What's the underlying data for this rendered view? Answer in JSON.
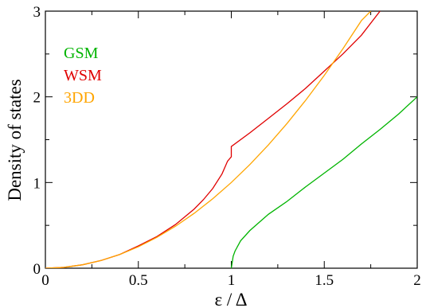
{
  "chart_data": {
    "type": "line",
    "title": "",
    "xlabel": "ε / Δ",
    "ylabel": "Density of states",
    "xlim": [
      0,
      2
    ],
    "ylim": [
      0,
      3
    ],
    "xticks": [
      "0",
      "0.5",
      "1",
      "1.5",
      "2"
    ],
    "yticks": [
      "0",
      "1",
      "2",
      "3"
    ],
    "grid": false,
    "legend_placement": "top-left",
    "series": [
      {
        "name": "GSM",
        "color": "#00b400",
        "x": [
          1.0,
          1.01,
          1.02,
          1.05,
          1.1,
          1.2,
          1.3,
          1.4,
          1.5,
          1.6,
          1.7,
          1.8,
          1.9,
          2.0
        ],
        "y": [
          0.0,
          0.14,
          0.2,
          0.32,
          0.44,
          0.63,
          0.78,
          0.95,
          1.11,
          1.27,
          1.45,
          1.62,
          1.8,
          2.0
        ]
      },
      {
        "name": "WSM",
        "color": "#e00000",
        "x": [
          0.0,
          0.1,
          0.2,
          0.3,
          0.4,
          0.5,
          0.6,
          0.7,
          0.8,
          0.85,
          0.9,
          0.95,
          0.98,
          1.0,
          1.0,
          1.1,
          1.2,
          1.3,
          1.4,
          1.5,
          1.6,
          1.7,
          1.8
        ],
        "y": [
          0.0,
          0.01,
          0.04,
          0.09,
          0.16,
          0.26,
          0.37,
          0.51,
          0.69,
          0.8,
          0.93,
          1.1,
          1.25,
          1.3,
          1.42,
          1.58,
          1.75,
          1.92,
          2.1,
          2.3,
          2.5,
          2.72,
          3.0
        ]
      },
      {
        "name": "3DD",
        "color": "#ffa500",
        "x": [
          0.0,
          0.1,
          0.2,
          0.3,
          0.4,
          0.5,
          0.6,
          0.7,
          0.8,
          0.9,
          1.0,
          1.1,
          1.2,
          1.3,
          1.4,
          1.5,
          1.6,
          1.7,
          1.75
        ],
        "y": [
          0.0,
          0.01,
          0.04,
          0.09,
          0.16,
          0.25,
          0.36,
          0.49,
          0.64,
          0.81,
          1.0,
          1.21,
          1.44,
          1.69,
          1.96,
          2.25,
          2.56,
          2.89,
          3.0
        ]
      }
    ]
  }
}
